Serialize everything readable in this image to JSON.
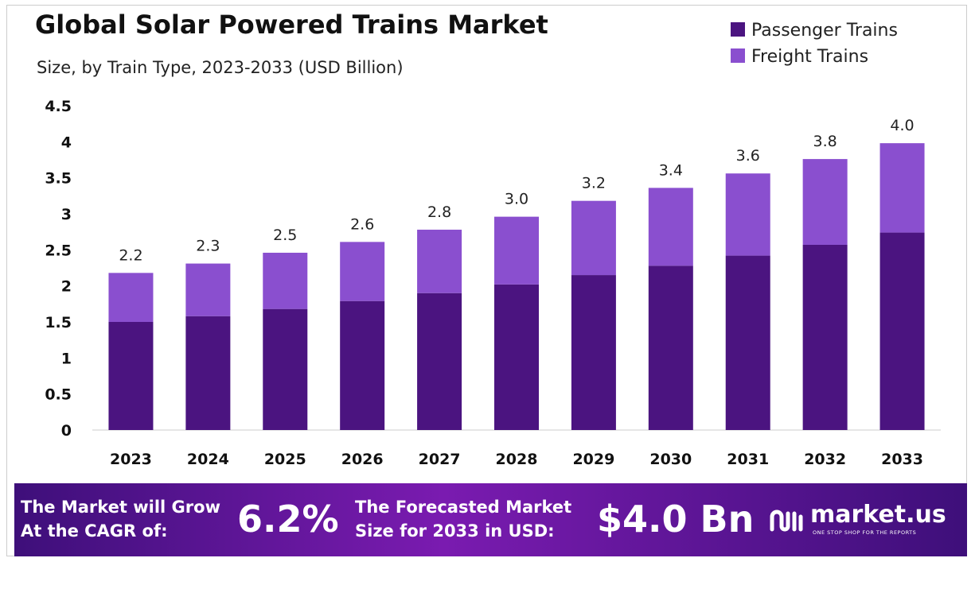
{
  "chart_data": {
    "type": "stacked_bar",
    "title": "Global Solar Powered Trains Market",
    "subtitle": "Size, by Train Type, 2023-2033 (USD Billion)",
    "categories": [
      "2023",
      "2024",
      "2025",
      "2026",
      "2027",
      "2028",
      "2029",
      "2030",
      "2031",
      "2032",
      "2033"
    ],
    "series": [
      {
        "name": "Passenger Trains",
        "color": "#4b1480",
        "values": [
          1.5,
          1.58,
          1.68,
          1.79,
          1.9,
          2.02,
          2.15,
          2.28,
          2.42,
          2.57,
          2.74
        ]
      },
      {
        "name": "Freight Trains",
        "color": "#8a4fcf",
        "values": [
          0.68,
          0.73,
          0.78,
          0.82,
          0.88,
          0.94,
          1.03,
          1.08,
          1.14,
          1.19,
          1.24
        ]
      }
    ],
    "total_labels": [
      "2.2",
      "2.3",
      "2.5",
      "2.6",
      "2.8",
      "3.0",
      "3.2",
      "3.4",
      "3.6",
      "3.8",
      "4.0"
    ],
    "ylim": [
      0,
      4.5
    ],
    "yticks": [
      0,
      0.5,
      1,
      1.5,
      2,
      2.5,
      3,
      3.5,
      4,
      4.5
    ],
    "legend": "top-right"
  },
  "footer": {
    "cagr_text": [
      "The Market will Grow",
      "At the CAGR of:"
    ],
    "cagr": "6.2%",
    "forecast_text": [
      "The Forecasted Market",
      "Size for 2033 in USD:"
    ],
    "forecast": "$4.0 Bn",
    "brand": "market.us",
    "tagline": "ONE STOP SHOP FOR THE REPORTS"
  }
}
